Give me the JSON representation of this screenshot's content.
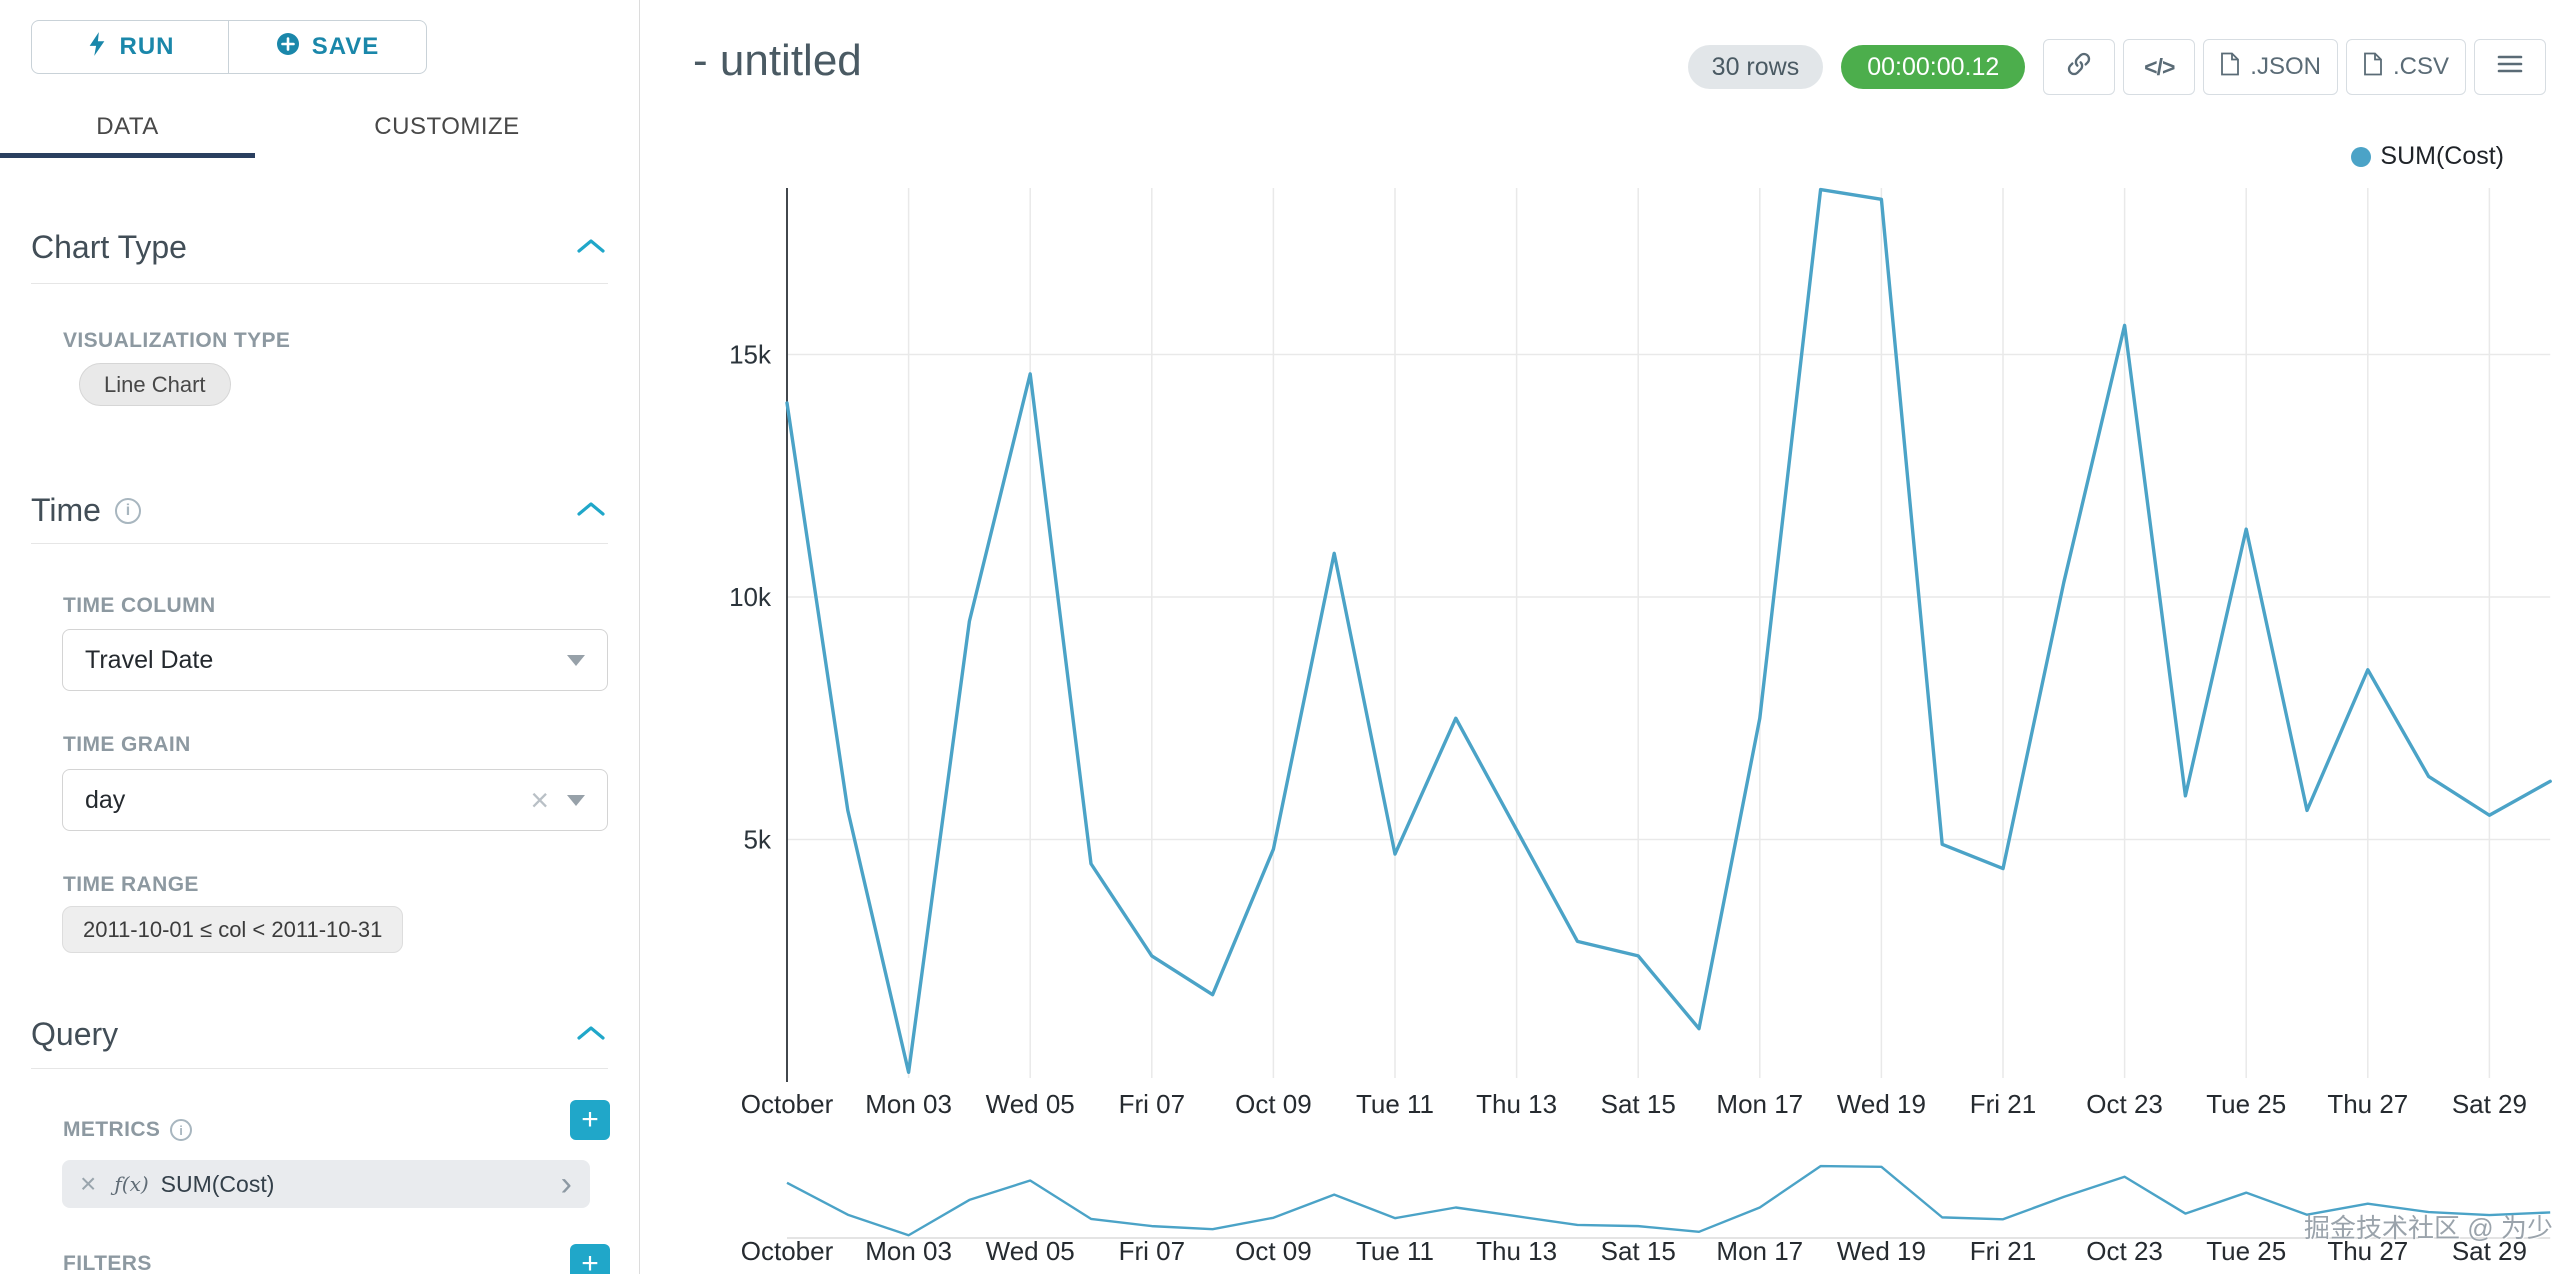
{
  "toolbar": {
    "run": "RUN",
    "save": "SAVE"
  },
  "tabs": {
    "data": "DATA",
    "customize": "CUSTOMIZE"
  },
  "sidebar": {
    "chart_type": {
      "title": "Chart Type",
      "viz_label": "VISUALIZATION TYPE",
      "viz_value": "Line Chart"
    },
    "time": {
      "title": "Time",
      "column_label": "TIME COLUMN",
      "column_value": "Travel Date",
      "grain_label": "TIME GRAIN",
      "grain_value": "day",
      "range_label": "TIME RANGE",
      "range_value": "2011-10-01 ≤ col < 2011-10-31"
    },
    "query": {
      "title": "Query",
      "metrics_label": "METRICS",
      "metric_fx": "ƒ(x)",
      "metric_value": "SUM(Cost)",
      "filters_label": "FILTERS"
    }
  },
  "header": {
    "title": "- untitled",
    "rows_badge": "30 rows",
    "timer": "00:00:00.12",
    "export_json": ".JSON",
    "export_csv": ".CSV"
  },
  "icons": {
    "code": "</>"
  },
  "watermark": "掘金技术社区 @ 为少",
  "colors": {
    "accent": "#20a7c9",
    "line": "#4ba3c7",
    "timer_green": "#4cae4c",
    "tab_underline": "#2a3f5f"
  },
  "chart_data": {
    "type": "line",
    "title": "- untitled",
    "legend": [
      {
        "label": "SUM(Cost)",
        "color": "#4ba3c7"
      }
    ],
    "legend_position": "top-right",
    "grid": true,
    "x_unit": "day",
    "x_range": [
      "2011-10-01",
      "2011-10-30"
    ],
    "x_tick_labels": [
      "October",
      "Mon 03",
      "Wed 05",
      "Fri 07",
      "Oct 09",
      "Tue 11",
      "Thu 13",
      "Sat 15",
      "Mon 17",
      "Wed 19",
      "Fri 21",
      "Oct 23",
      "Tue 25",
      "Thu 27",
      "Sat 29"
    ],
    "x_tick_days": [
      0,
      2,
      4,
      6,
      8,
      10,
      12,
      14,
      16,
      18,
      20,
      22,
      24,
      26,
      28
    ],
    "y_ticks": [
      {
        "label": "15k",
        "value": 15000
      },
      {
        "label": "10k",
        "value": 10000
      },
      {
        "label": "5k",
        "value": 5000
      }
    ],
    "ylim": [
      0,
      18600
    ],
    "series": [
      {
        "name": "SUM(Cost)",
        "values": [
          14000,
          5600,
          200,
          9500,
          14600,
          4500,
          2600,
          1800,
          4800,
          10900,
          4700,
          7500,
          5200,
          2900,
          2600,
          1100,
          7500,
          18400,
          18200,
          4900,
          4400,
          10300,
          15600,
          5900,
          11400,
          5600,
          8500,
          6300,
          5500,
          6200
        ]
      }
    ],
    "mini_preview": true
  }
}
